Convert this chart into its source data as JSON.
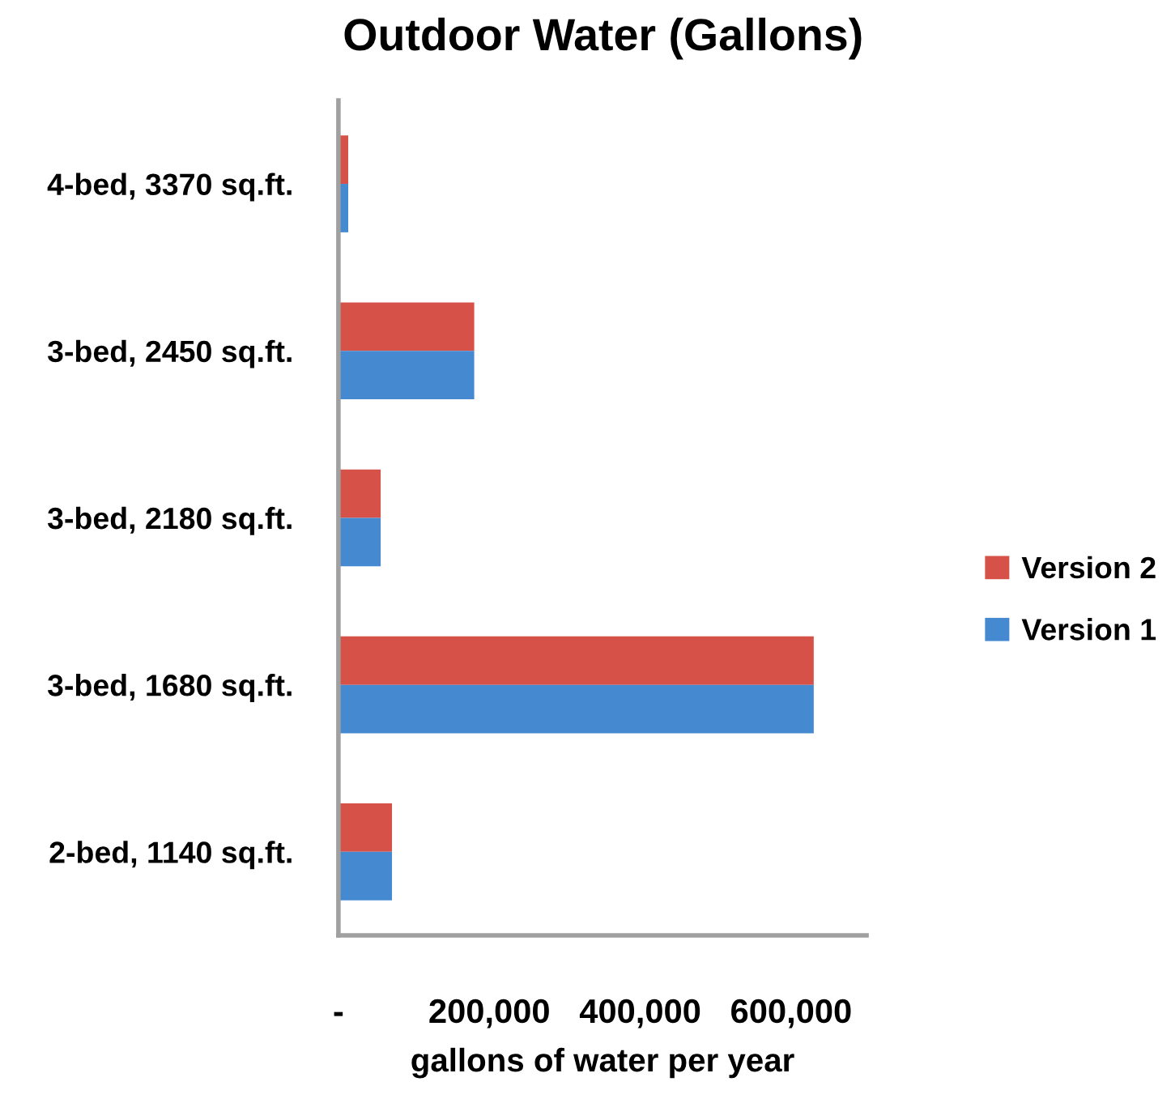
{
  "chart_data": {
    "type": "bar",
    "orientation": "horizontal",
    "title": "Outdoor Water (Gallons)",
    "xlabel": "gallons of water per year",
    "categories": [
      "4-bed, 3370 sq.ft.",
      "3-bed, 2450 sq.ft.",
      "3-bed, 2180 sq.ft.",
      "3-bed, 1680 sq.ft.",
      "2-bed, 1140 sq.ft."
    ],
    "series": [
      {
        "name": "Version 2",
        "color": "#d65249",
        "values": [
          13000,
          180000,
          56000,
          630000,
          71000
        ]
      },
      {
        "name": "Version 1",
        "color": "#4589d0",
        "values": [
          13000,
          180000,
          56000,
          630000,
          71000
        ]
      }
    ],
    "xlim": [
      0,
      700000
    ],
    "xticks": [
      {
        "value": 0,
        "label": "-"
      },
      {
        "value": 200000,
        "label": "200,000"
      },
      {
        "value": 400000,
        "label": "400,000"
      },
      {
        "value": 600000,
        "label": "600,000"
      }
    ],
    "legend": "right",
    "grid": false
  }
}
